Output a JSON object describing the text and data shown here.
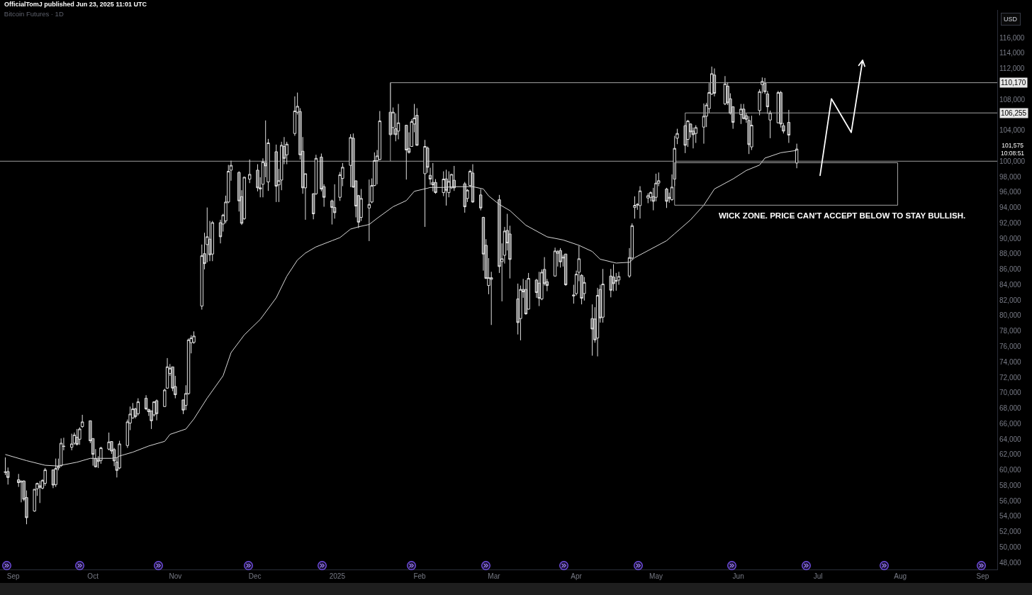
{
  "chart_data": {
    "type": "candlestick",
    "title": "Bitcoin Futures · 1D",
    "ylabel": "USD",
    "annotations": [
      "OfficialTomJ published Jun 23, 2025 11:01 UTC",
      "WICK ZONE. PRICE CAN'T ACCEPT BELOW TO STAY BULLISH.",
      "101,575",
      "10:08:51"
    ],
    "xlim": [
      "2024-08-27",
      "2025-09-06T12:00"
    ],
    "xticks": [
      {
        "value": "2024-09-01",
        "label": "Sep"
      },
      {
        "value": "2024-10-01",
        "label": "Oct"
      },
      {
        "value": "2024-11-01",
        "label": "Nov"
      },
      {
        "value": "2024-12-01",
        "label": "Dec"
      },
      {
        "value": "2025-01-01",
        "label": "2025"
      },
      {
        "value": "2025-02-01",
        "label": "Feb"
      },
      {
        "value": "2025-03-01",
        "label": "Mar"
      },
      {
        "value": "2025-04-01",
        "label": "Apr"
      },
      {
        "value": "2025-05-01",
        "label": "May"
      },
      {
        "value": "2025-06-01",
        "label": "Jun"
      },
      {
        "value": "2025-07-01",
        "label": "Jul"
      },
      {
        "value": "2025-08-01",
        "label": "Aug"
      },
      {
        "value": "2025-09-01",
        "label": "Sep"
      }
    ],
    "ylim": [
      47100,
      119600
    ],
    "yticks": [
      {
        "value": 48000,
        "label": "48,000"
      },
      {
        "value": 50000,
        "label": "50,000"
      },
      {
        "value": 52000,
        "label": "52,000"
      },
      {
        "value": 54000,
        "label": "54,000"
      },
      {
        "value": 56000,
        "label": "56,000"
      },
      {
        "value": 58000,
        "label": "58,000"
      },
      {
        "value": 60000,
        "label": "60,000"
      },
      {
        "value": 62000,
        "label": "62,000"
      },
      {
        "value": 64000,
        "label": "64,000"
      },
      {
        "value": 66000,
        "label": "66,000"
      },
      {
        "value": 68000,
        "label": "68,000"
      },
      {
        "value": 70000,
        "label": "70,000"
      },
      {
        "value": 72000,
        "label": "72,000"
      },
      {
        "value": 74000,
        "label": "74,000"
      },
      {
        "value": 76000,
        "label": "76,000"
      },
      {
        "value": 78000,
        "label": "78,000"
      },
      {
        "value": 80000,
        "label": "80,000"
      },
      {
        "value": 82000,
        "label": "82,000"
      },
      {
        "value": 84000,
        "label": "84,000"
      },
      {
        "value": 86000,
        "label": "86,000"
      },
      {
        "value": 88000,
        "label": "88,000"
      },
      {
        "value": 90000,
        "label": "90,000"
      },
      {
        "value": 92000,
        "label": "92,000"
      },
      {
        "value": 94000,
        "label": "94,000"
      },
      {
        "value": 96000,
        "label": "96,000"
      },
      {
        "value": 98000,
        "label": "98,000"
      },
      {
        "value": 100000,
        "label": "100,000"
      },
      {
        "value": 104000,
        "label": "104,000"
      },
      {
        "value": 108000,
        "label": "108,000"
      },
      {
        "value": 112000,
        "label": "112,000"
      },
      {
        "value": 114000,
        "label": "114,000"
      },
      {
        "value": 116000,
        "label": "116,000"
      }
    ],
    "ref_lines": [
      {
        "axis": "y",
        "value": 100000,
        "color": "#9e9e9e"
      }
    ],
    "series": [
      {
        "type": "line",
        "color": "#d9d9d9",
        "x": [
          "2024-08-29",
          "2024-09-06",
          "2024-09-13",
          "2024-09-18",
          "2024-09-19",
          "2024-09-25",
          "2024-09-30",
          "2024-10-08",
          "2024-10-10",
          "2024-10-11",
          "2024-10-16",
          "2024-10-22",
          "2024-10-28",
          "2024-10-30",
          "2024-11-05",
          "2024-11-08",
          "2024-11-13",
          "2024-11-19",
          "2024-11-22",
          "2024-11-27",
          "2024-12-03",
          "2024-12-09",
          "2024-12-13",
          "2024-12-17",
          "2024-12-20",
          "2024-12-24",
          "2024-12-30",
          "2025-01-02",
          "2025-01-06",
          "2025-01-09",
          "2025-01-13",
          "2025-01-16",
          "2025-01-22",
          "2025-01-27",
          "2025-01-30",
          "2025-02-04",
          "2025-02-05",
          "2025-02-10",
          "2025-02-14",
          "2025-02-21",
          "2025-02-25",
          "2025-02-27",
          "2025-03-03",
          "2025-03-07",
          "2025-03-13",
          "2025-03-21",
          "2025-03-27",
          "2025-04-02",
          "2025-04-07",
          "2025-04-10",
          "2025-04-16",
          "2025-04-21",
          "2025-04-23",
          "2025-04-29",
          "2025-05-05",
          "2025-05-08",
          "2025-05-14",
          "2025-05-19",
          "2025-05-23",
          "2025-05-30",
          "2025-06-04",
          "2025-06-09",
          "2025-06-11",
          "2025-06-17",
          "2025-06-23"
        ],
        "values": [
          62000,
          61200,
          60600,
          60500,
          60600,
          61000,
          61500,
          61500,
          61600,
          61800,
          62300,
          63100,
          63700,
          64600,
          65300,
          66600,
          69300,
          72200,
          75200,
          77500,
          79500,
          82300,
          85100,
          87200,
          88100,
          88900,
          89700,
          90100,
          91200,
          91500,
          91800,
          92600,
          94100,
          94900,
          96100,
          96500,
          96600,
          96600,
          96700,
          96700,
          96400,
          95500,
          94400,
          93600,
          91700,
          90200,
          89800,
          89100,
          88300,
          87300,
          86800,
          86900,
          87500,
          88600,
          89700,
          90600,
          92400,
          94300,
          96400,
          97700,
          98800,
          99500,
          100400,
          101100,
          101400
        ]
      },
      {
        "type": "line",
        "name": "110,170",
        "color": "#a3a3a3",
        "x": [
          "2025-01-21",
          "2025-01-21",
          "2025-09-06T12:00"
        ],
        "values": [
          100000,
          110170,
          110170
        ]
      },
      {
        "type": "line",
        "name": "106,255",
        "color": "#a3a3a3",
        "x": [
          "2025-05-12",
          "2025-05-12",
          "2025-09-06T12:00"
        ],
        "values": [
          104900,
          106255,
          106255
        ]
      },
      {
        "type": "line",
        "color": "#a3a3a3",
        "x": [
          "2025-05-08",
          "2025-05-08",
          "2025-07-31"
        ],
        "values": [
          94300,
          99800,
          99800
        ]
      },
      {
        "type": "line",
        "color": "#a3a3a3",
        "x": [
          "2025-05-08",
          "2025-07-31",
          "2025-07-31"
        ],
        "values": [
          94300,
          94300,
          99800
        ]
      },
      {
        "color": "#e0e0e0",
        "x": [
          "2024-08-29",
          "2024-08-30",
          "2024-09-03",
          "2024-09-04",
          "2024-09-05",
          "2024-09-06",
          "2024-09-09",
          "2024-09-10",
          "2024-09-11",
          "2024-09-12",
          "2024-09-13",
          "2024-09-16",
          "2024-09-17",
          "2024-09-18",
          "2024-09-19",
          "2024-09-20",
          "2024-09-23",
          "2024-09-24",
          "2024-09-25",
          "2024-09-26",
          "2024-09-27",
          "2024-09-30",
          "2024-10-01",
          "2024-10-02",
          "2024-10-03",
          "2024-10-04",
          "2024-10-07",
          "2024-10-08",
          "2024-10-09",
          "2024-10-10",
          "2024-10-11",
          "2024-10-14",
          "2024-10-15",
          "2024-10-16",
          "2024-10-17",
          "2024-10-18",
          "2024-10-21",
          "2024-10-22",
          "2024-10-23",
          "2024-10-24",
          "2024-10-25",
          "2024-10-28",
          "2024-10-29",
          "2024-10-30",
          "2024-10-31",
          "2024-11-01",
          "2024-11-04",
          "2024-11-05",
          "2024-11-06",
          "2024-11-07",
          "2024-11-08",
          "2024-11-11",
          "2024-11-12",
          "2024-11-13",
          "2024-11-14",
          "2024-11-15",
          "2024-11-18",
          "2024-11-19",
          "2024-11-20",
          "2024-11-21",
          "2024-11-22",
          "2024-11-25",
          "2024-11-26",
          "2024-11-27",
          "2024-11-29",
          "2024-12-02",
          "2024-12-03",
          "2024-12-04",
          "2024-12-05",
          "2024-12-06",
          "2024-12-09",
          "2024-12-10",
          "2024-12-11",
          "2024-12-12",
          "2024-12-13",
          "2024-12-16",
          "2024-12-17",
          "2024-12-18",
          "2024-12-19",
          "2024-12-20",
          "2024-12-23",
          "2024-12-24",
          "2024-12-26",
          "2024-12-27",
          "2024-12-30",
          "2024-12-31",
          "2025-01-02",
          "2025-01-03",
          "2025-01-06",
          "2025-01-07",
          "2025-01-08",
          "2025-01-09",
          "2025-01-10",
          "2025-01-13",
          "2025-01-14",
          "2025-01-15",
          "2025-01-16",
          "2025-01-17",
          "2025-01-21",
          "2025-01-22",
          "2025-01-23",
          "2025-01-24",
          "2025-01-27",
          "2025-01-28",
          "2025-01-29",
          "2025-01-30",
          "2025-01-31",
          "2025-02-03",
          "2025-02-04",
          "2025-02-05",
          "2025-02-06",
          "2025-02-07",
          "2025-02-10",
          "2025-02-11",
          "2025-02-12",
          "2025-02-13",
          "2025-02-14",
          "2025-02-18",
          "2025-02-19",
          "2025-02-20",
          "2025-02-21",
          "2025-02-24",
          "2025-02-25",
          "2025-02-26",
          "2025-02-27",
          "2025-02-28",
          "2025-03-03",
          "2025-03-04",
          "2025-03-05",
          "2025-03-06",
          "2025-03-07",
          "2025-03-10",
          "2025-03-11",
          "2025-03-12",
          "2025-03-13",
          "2025-03-14",
          "2025-03-17",
          "2025-03-18",
          "2025-03-19",
          "2025-03-20",
          "2025-03-21",
          "2025-03-24",
          "2025-03-25",
          "2025-03-26",
          "2025-03-27",
          "2025-03-28",
          "2025-03-31",
          "2025-04-01",
          "2025-04-02",
          "2025-04-03",
          "2025-04-04",
          "2025-04-07",
          "2025-04-08",
          "2025-04-09",
          "2025-04-10",
          "2025-04-11",
          "2025-04-14",
          "2025-04-15",
          "2025-04-16",
          "2025-04-17",
          "2025-04-21",
          "2025-04-22",
          "2025-04-23",
          "2025-04-24",
          "2025-04-25",
          "2025-04-28",
          "2025-04-29",
          "2025-04-30",
          "2025-05-01",
          "2025-05-02",
          "2025-05-05",
          "2025-05-06",
          "2025-05-07",
          "2025-05-08",
          "2025-05-09",
          "2025-05-12",
          "2025-05-13",
          "2025-05-14",
          "2025-05-15",
          "2025-05-16",
          "2025-05-19",
          "2025-05-20",
          "2025-05-21",
          "2025-05-22",
          "2025-05-23",
          "2025-05-27",
          "2025-05-28",
          "2025-05-29",
          "2025-05-30",
          "2025-06-02",
          "2025-06-03",
          "2025-06-04",
          "2025-06-05",
          "2025-06-06",
          "2025-06-09",
          "2025-06-10",
          "2025-06-11",
          "2025-06-12",
          "2025-06-13",
          "2025-06-16",
          "2025-06-17",
          "2025-06-18",
          "2025-06-20",
          "2025-06-23"
        ],
        "ohlc": [
          [
            59750,
            61620,
            59330,
            59700
          ],
          [
            59790,
            60310,
            58100,
            59020
          ],
          [
            58720,
            59480,
            57800,
            58350
          ],
          [
            58410,
            58600,
            55800,
            58560
          ],
          [
            58560,
            58650,
            55960,
            56200
          ],
          [
            56420,
            57340,
            52960,
            53810
          ],
          [
            54670,
            57500,
            54580,
            57490
          ],
          [
            57550,
            58350,
            56630,
            58250
          ],
          [
            57950,
            58560,
            55710,
            57740
          ],
          [
            57640,
            58780,
            57490,
            58650
          ],
          [
            58260,
            60250,
            57950,
            60000
          ],
          [
            60000,
            60010,
            57640,
            58040
          ],
          [
            58100,
            61470,
            57800,
            60180
          ],
          [
            60250,
            61470,
            59940,
            60490
          ],
          [
            60550,
            64080,
            60400,
            63460
          ],
          [
            63080,
            64170,
            62540,
            63040
          ],
          [
            62940,
            64690,
            62540,
            63370
          ],
          [
            63460,
            64840,
            63250,
            64530
          ],
          [
            64230,
            65300,
            63160,
            63310
          ],
          [
            63980,
            65520,
            63250,
            65300
          ],
          [
            65610,
            67140,
            65450,
            66220
          ],
          [
            66370,
            66380,
            63460,
            63770
          ],
          [
            64070,
            64080,
            60550,
            62020
          ],
          [
            61470,
            62700,
            60310,
            60400
          ],
          [
            61100,
            61780,
            60250,
            61320
          ],
          [
            61230,
            63000,
            60800,
            62850
          ],
          [
            62700,
            64840,
            62540,
            63620
          ],
          [
            63680,
            63690,
            62080,
            62450
          ],
          [
            62640,
            62850,
            60490,
            61170
          ],
          [
            61010,
            61620,
            59020,
            59940
          ],
          [
            60250,
            63770,
            60090,
            63370
          ],
          [
            63160,
            66530,
            62850,
            66220
          ],
          [
            66070,
            68210,
            65150,
            67230
          ],
          [
            66740,
            68670,
            66620,
            67900
          ],
          [
            67900,
            68060,
            66680,
            66920
          ],
          [
            67290,
            69280,
            67050,
            68820
          ],
          [
            69280,
            69680,
            67750,
            67900
          ],
          [
            67840,
            67900,
            66990,
            67540
          ],
          [
            67650,
            67660,
            65300,
            66370
          ],
          [
            67140,
            68880,
            66920,
            68820
          ],
          [
            68970,
            69130,
            66430,
            67290
          ],
          [
            68210,
            70510,
            68150,
            70350
          ],
          [
            70600,
            74490,
            70510,
            73360
          ],
          [
            72500,
            73720,
            72190,
            73170
          ],
          [
            73350,
            73360,
            70200,
            70600
          ],
          [
            70810,
            72190,
            69280,
            69740
          ],
          [
            69070,
            69130,
            67230,
            67750
          ],
          [
            68360,
            70970,
            67750,
            69900
          ],
          [
            69900,
            77030,
            69740,
            76850
          ],
          [
            76480,
            77460,
            75100,
            77090
          ],
          [
            76540,
            77950,
            76330,
            77340
          ],
          [
            81230,
            89200,
            80770,
            87750
          ],
          [
            88020,
            90730,
            85980,
            86740
          ],
          [
            89200,
            94000,
            86900,
            90210
          ],
          [
            89900,
            92260,
            87050,
            87880
          ],
          [
            87970,
            92260,
            87050,
            92040
          ],
          [
            92040,
            92410,
            89350,
            90210
          ],
          [
            91860,
            93180,
            90880,
            93020
          ],
          [
            92260,
            95540,
            91950,
            94710
          ],
          [
            94710,
            99520,
            94550,
            98690
          ],
          [
            98840,
            100070,
            97470,
            99460
          ],
          [
            98540,
            98690,
            93480,
            94860
          ],
          [
            95410,
            96240,
            91740,
            91950
          ],
          [
            92560,
            97990,
            92410,
            97920
          ],
          [
            97680,
            100220,
            97160,
            98290
          ],
          [
            98840,
            99610,
            96090,
            96550
          ],
          [
            96550,
            97920,
            95320,
            96400
          ],
          [
            97010,
            100370,
            95320,
            99910
          ],
          [
            99760,
            105280,
            97920,
            99400
          ],
          [
            97310,
            102890,
            96150,
            102370
          ],
          [
            101230,
            102150,
            94710,
            96760
          ],
          [
            96940,
            99000,
            94710,
            97470
          ],
          [
            97560,
            102520,
            96240,
            102060
          ],
          [
            101910,
            103130,
            99610,
            100370
          ],
          [
            100830,
            102520,
            99610,
            102210
          ],
          [
            103590,
            108400,
            103290,
            106500
          ],
          [
            106350,
            108890,
            106040,
            107110
          ],
          [
            106440,
            106870,
            100220,
            100830
          ],
          [
            101290,
            103130,
            95780,
            96550
          ],
          [
            96550,
            98390,
            92410,
            98380
          ],
          [
            95780,
            95840,
            92470,
            93180
          ],
          [
            95780,
            100830,
            95630,
            100370
          ],
          [
            100530,
            100990,
            96090,
            96390
          ],
          [
            96700,
            97010,
            94100,
            95320
          ],
          [
            94860,
            95020,
            91800,
            94000
          ],
          [
            94000,
            97010,
            92560,
            93330
          ],
          [
            95320,
            98600,
            94860,
            98230
          ],
          [
            97770,
            99760,
            96760,
            99210
          ],
          [
            99460,
            103500,
            96640,
            103070
          ],
          [
            102980,
            103590,
            96550,
            96640
          ],
          [
            97460,
            97470,
            92720,
            94190
          ],
          [
            95540,
            95630,
            91340,
            92100
          ],
          [
            92720,
            96390,
            92260,
            95170
          ],
          [
            93940,
            97620,
            89650,
            94400
          ],
          [
            94710,
            97770,
            94550,
            96850
          ],
          [
            96850,
            101140,
            96760,
            100070
          ],
          [
            100070,
            101450,
            97010,
            100680
          ],
          [
            100220,
            106500,
            100130,
            105210
          ],
          [
            106350,
            110170,
            103300,
            103440
          ],
          [
            104360,
            106960,
            103440,
            106350
          ],
          [
            104200,
            106200,
            102580,
            103440
          ],
          [
            103900,
            107420,
            102830,
            104970
          ],
          [
            104660,
            104670,
            97620,
            101450
          ],
          [
            101660,
            103740,
            100990,
            101140
          ],
          [
            101910,
            105430,
            101900,
            105120
          ],
          [
            104820,
            107420,
            103740,
            105580
          ],
          [
            105950,
            106870,
            102000,
            102060
          ],
          [
            98380,
            102760,
            91490,
            101910
          ],
          [
            101700,
            101900,
            98500,
            99210
          ],
          [
            98170,
            99150,
            96940,
            97680
          ],
          [
            97250,
            99760,
            96090,
            96940
          ],
          [
            97250,
            97680,
            95780,
            95930
          ],
          [
            95930,
            98690,
            95470,
            97680
          ],
          [
            97710,
            98900,
            94250,
            96240
          ],
          [
            95930,
            98690,
            95320,
            97370
          ],
          [
            96550,
            98380,
            96390,
            98290
          ],
          [
            97530,
            99390,
            96150,
            96550
          ],
          [
            97070,
            97310,
            93330,
            94090
          ],
          [
            95170,
            96390,
            94710,
            96240
          ],
          [
            96850,
            98900,
            96700,
            98690
          ],
          [
            98470,
            99610,
            94600,
            94710
          ],
          [
            95630,
            96390,
            93630,
            93940
          ],
          [
            92720,
            92800,
            85820,
            87970
          ],
          [
            89100,
            89900,
            84750,
            84810
          ],
          [
            83890,
            87450,
            82760,
            84900
          ],
          [
            84690,
            85670,
            78780,
            84900
          ],
          [
            95010,
            95630,
            85520,
            86350
          ],
          [
            86990,
            89350,
            81840,
            87360
          ],
          [
            87810,
            91490,
            86740,
            90940
          ],
          [
            91030,
            93180,
            88430,
            89410
          ],
          [
            90570,
            91640,
            84810,
            87270
          ],
          [
            82150,
            84140,
            77550,
            79090
          ],
          [
            79610,
            83890,
            76790,
            83380
          ],
          [
            83380,
            84750,
            82300,
            83070
          ],
          [
            83380,
            84600,
            80100,
            80220
          ],
          [
            80830,
            85520,
            80780,
            84810
          ],
          [
            84600,
            84750,
            82300,
            82980
          ],
          [
            84200,
            85670,
            81230,
            82240
          ],
          [
            82150,
            85980,
            81990,
            85610
          ],
          [
            85980,
            87570,
            83890,
            84140
          ],
          [
            84380,
            84750,
            83160,
            83890
          ],
          [
            85120,
            88800,
            85060,
            88370
          ],
          [
            88060,
            88490,
            86350,
            88280
          ],
          [
            88430,
            88740,
            86220,
            86960
          ],
          [
            87450,
            87880,
            86350,
            87570
          ],
          [
            87970,
            88000,
            83850,
            83990
          ],
          [
            82670,
            83990,
            81540,
            82550
          ],
          [
            82850,
            85820,
            82610,
            85360
          ],
          [
            85610,
            89040,
            84450,
            87360
          ],
          [
            85210,
            85360,
            81450,
            82240
          ],
          [
            82850,
            85000,
            81940,
            84290
          ],
          [
            79610,
            81450,
            74800,
            78260
          ],
          [
            79550,
            81080,
            76480,
            76850
          ],
          [
            77090,
            83590,
            74710,
            82610
          ],
          [
            83380,
            83990,
            79090,
            79700
          ],
          [
            79790,
            86040,
            79090,
            84080
          ],
          [
            85120,
            86040,
            82360,
            83280
          ],
          [
            84990,
            86650,
            83160,
            84140
          ],
          [
            84450,
            85520,
            83220,
            84530
          ],
          [
            84600,
            85670,
            83990,
            85060
          ],
          [
            85120,
            88740,
            84900,
            87510
          ],
          [
            87450,
            91950,
            87270,
            91640
          ],
          [
            94000,
            95450,
            92560,
            94280
          ],
          [
            94330,
            94560,
            93700,
            94400
          ],
          [
            94250,
            96760,
            92570,
            96150
          ],
          [
            95230,
            95840,
            94560,
            95530
          ],
          [
            95320,
            96090,
            94800,
            95930
          ],
          [
            95410,
            96550,
            93640,
            94800
          ],
          [
            95320,
            98380,
            94800,
            97160
          ],
          [
            97160,
            98540,
            96760,
            97470
          ],
          [
            96390,
            96550,
            93940,
            94800
          ],
          [
            95170,
            95930,
            94620,
            95320
          ],
          [
            95020,
            98290,
            94860,
            96640
          ],
          [
            97680,
            103290,
            96800,
            101660
          ],
          [
            102980,
            104200,
            102210,
            103590
          ],
          [
            104600,
            104910,
            101050,
            102060
          ],
          [
            102830,
            105340,
            101850,
            105210
          ],
          [
            104820,
            104910,
            103070,
            103810
          ],
          [
            103900,
            104360,
            101660,
            103440
          ],
          [
            103590,
            104660,
            102370,
            104360
          ],
          [
            104420,
            107480,
            102270,
            105830
          ],
          [
            105830,
            107570,
            104420,
            107270
          ],
          [
            106810,
            110120,
            106260,
            108890
          ],
          [
            108710,
            112260,
            108580,
            111340
          ],
          [
            111160,
            112020,
            108400,
            108800
          ],
          [
            107420,
            111030,
            107270,
            110020
          ],
          [
            109720,
            110240,
            107270,
            107570
          ],
          [
            108090,
            108800,
            106040,
            106200
          ],
          [
            107050,
            107110,
            104200,
            105030
          ],
          [
            106040,
            107420,
            104820,
            106750
          ],
          [
            106750,
            107420,
            105430,
            105520
          ],
          [
            105890,
            106260,
            104970,
            105430
          ],
          [
            105280,
            105830,
            100930,
            102150
          ],
          [
            101850,
            105890,
            101450,
            104660
          ],
          [
            106560,
            109320,
            105950,
            109010
          ],
          [
            109930,
            110850,
            108800,
            110330
          ],
          [
            110120,
            110790,
            108710,
            109010
          ],
          [
            108710,
            109110,
            106130,
            107050
          ],
          [
            105340,
            106560,
            102980,
            106260
          ],
          [
            104970,
            109110,
            104900,
            108890
          ],
          [
            108890,
            109110,
            104360,
            104820
          ],
          [
            104600,
            104970,
            103590,
            103900
          ],
          [
            105030,
            106650,
            102370,
            103380
          ],
          [
            99760,
            102270,
            99090,
            101575
          ]
        ]
      }
    ]
  }
}
